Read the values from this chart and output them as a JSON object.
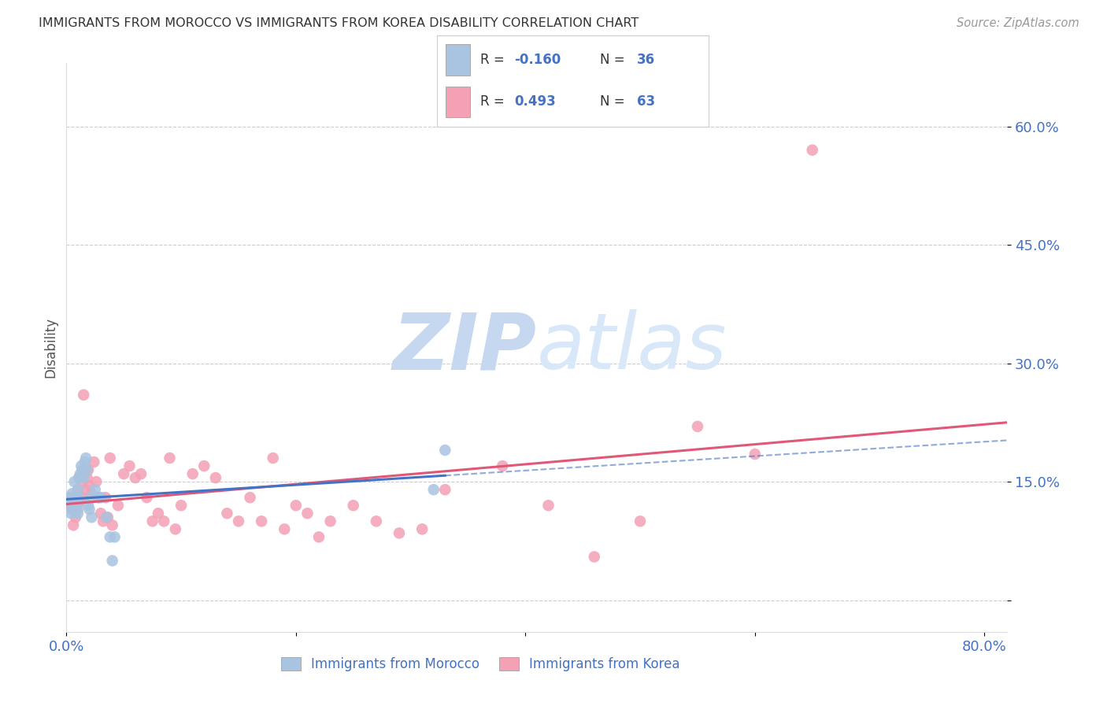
{
  "title": "IMMIGRANTS FROM MOROCCO VS IMMIGRANTS FROM KOREA DISABILITY CORRELATION CHART",
  "source": "Source: ZipAtlas.com",
  "ylabel": "Disability",
  "xlim": [
    0.0,
    0.82
  ],
  "ylim": [
    -0.04,
    0.68
  ],
  "yticks": [
    0.0,
    0.15,
    0.3,
    0.45,
    0.6
  ],
  "ytick_labels": [
    "",
    "15.0%",
    "30.0%",
    "45.0%",
    "60.0%"
  ],
  "xticks": [
    0.0,
    0.2,
    0.4,
    0.6,
    0.8
  ],
  "xtick_labels": [
    "0.0%",
    "",
    "",
    "",
    "80.0%"
  ],
  "morocco_R": -0.16,
  "morocco_N": 36,
  "korea_R": 0.493,
  "korea_N": 63,
  "morocco_color": "#a8c4e0",
  "korea_color": "#f4a0b5",
  "morocco_line_color": "#4472c4",
  "korea_line_color": "#e05878",
  "background_color": "#ffffff",
  "morocco_x": [
    0.002,
    0.003,
    0.004,
    0.005,
    0.005,
    0.005,
    0.006,
    0.007,
    0.008,
    0.008,
    0.009,
    0.01,
    0.01,
    0.01,
    0.01,
    0.011,
    0.012,
    0.013,
    0.014,
    0.015,
    0.016,
    0.017,
    0.018,
    0.019,
    0.02,
    0.021,
    0.022,
    0.025,
    0.028,
    0.03,
    0.035,
    0.038,
    0.04,
    0.042,
    0.32,
    0.33
  ],
  "morocco_y": [
    0.13,
    0.125,
    0.11,
    0.12,
    0.115,
    0.135,
    0.13,
    0.15,
    0.12,
    0.115,
    0.125,
    0.13,
    0.11,
    0.115,
    0.14,
    0.155,
    0.16,
    0.17,
    0.165,
    0.155,
    0.175,
    0.18,
    0.165,
    0.12,
    0.115,
    0.13,
    0.105,
    0.14,
    0.13,
    0.13,
    0.105,
    0.08,
    0.05,
    0.08,
    0.14,
    0.19
  ],
  "korea_x": [
    0.003,
    0.005,
    0.006,
    0.008,
    0.009,
    0.01,
    0.011,
    0.012,
    0.013,
    0.014,
    0.015,
    0.016,
    0.017,
    0.018,
    0.019,
    0.02,
    0.022,
    0.024,
    0.026,
    0.028,
    0.03,
    0.032,
    0.034,
    0.036,
    0.038,
    0.04,
    0.045,
    0.05,
    0.055,
    0.06,
    0.065,
    0.07,
    0.075,
    0.08,
    0.085,
    0.09,
    0.095,
    0.1,
    0.11,
    0.12,
    0.13,
    0.14,
    0.15,
    0.16,
    0.17,
    0.18,
    0.19,
    0.2,
    0.21,
    0.22,
    0.23,
    0.25,
    0.27,
    0.29,
    0.31,
    0.33,
    0.38,
    0.42,
    0.46,
    0.5,
    0.55,
    0.6,
    0.65
  ],
  "korea_y": [
    0.12,
    0.115,
    0.095,
    0.105,
    0.12,
    0.14,
    0.155,
    0.125,
    0.15,
    0.13,
    0.26,
    0.165,
    0.14,
    0.155,
    0.165,
    0.145,
    0.135,
    0.175,
    0.15,
    0.13,
    0.11,
    0.1,
    0.13,
    0.105,
    0.18,
    0.095,
    0.12,
    0.16,
    0.17,
    0.155,
    0.16,
    0.13,
    0.1,
    0.11,
    0.1,
    0.18,
    0.09,
    0.12,
    0.16,
    0.17,
    0.155,
    0.11,
    0.1,
    0.13,
    0.1,
    0.18,
    0.09,
    0.12,
    0.11,
    0.08,
    0.1,
    0.12,
    0.1,
    0.085,
    0.09,
    0.14,
    0.17,
    0.12,
    0.055,
    0.1,
    0.22,
    0.185,
    0.57
  ]
}
